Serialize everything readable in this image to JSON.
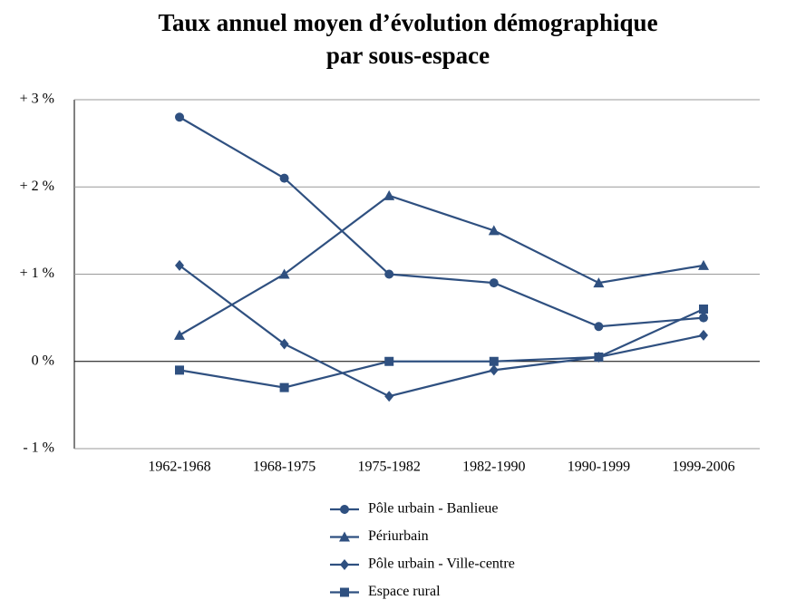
{
  "chart_data": {
    "type": "line",
    "title": [
      "Taux annuel moyen d’évolution démographique",
      "par sous-espace"
    ],
    "categories": [
      "1962-1968",
      "1968-1975",
      "1975-1982",
      "1982-1990",
      "1990-1999",
      "1999-2006"
    ],
    "series": [
      {
        "name": "Pôle urbain - Banlieue",
        "color": "#2f5080",
        "marker": "circle",
        "values": [
          2.8,
          2.1,
          1.0,
          0.9,
          0.4,
          0.5
        ]
      },
      {
        "name": "Périurbain",
        "color": "#2f5080",
        "marker": "triangle",
        "values": [
          0.3,
          1.0,
          1.9,
          1.5,
          0.9,
          1.1
        ]
      },
      {
        "name": "Pôle urbain - Ville-centre",
        "color": "#2f5080",
        "marker": "diamond",
        "values": [
          1.1,
          0.2,
          -0.4,
          -0.1,
          0.05,
          0.3
        ]
      },
      {
        "name": "Espace rural",
        "color": "#2f5080",
        "marker": "square",
        "values": [
          -0.1,
          -0.3,
          0,
          0,
          0.05,
          0.6
        ]
      }
    ],
    "ylim": [
      -1,
      3
    ],
    "yticks": [
      {
        "value": -1,
        "label": "- 1 %"
      },
      {
        "value": 0,
        "label": "0 %"
      },
      {
        "value": 1,
        "label": "+ 1 %"
      },
      {
        "value": 2,
        "label": "+ 2 %"
      },
      {
        "value": 3,
        "label": "+ 3 %"
      }
    ],
    "grid": true,
    "legend": "bottom"
  }
}
